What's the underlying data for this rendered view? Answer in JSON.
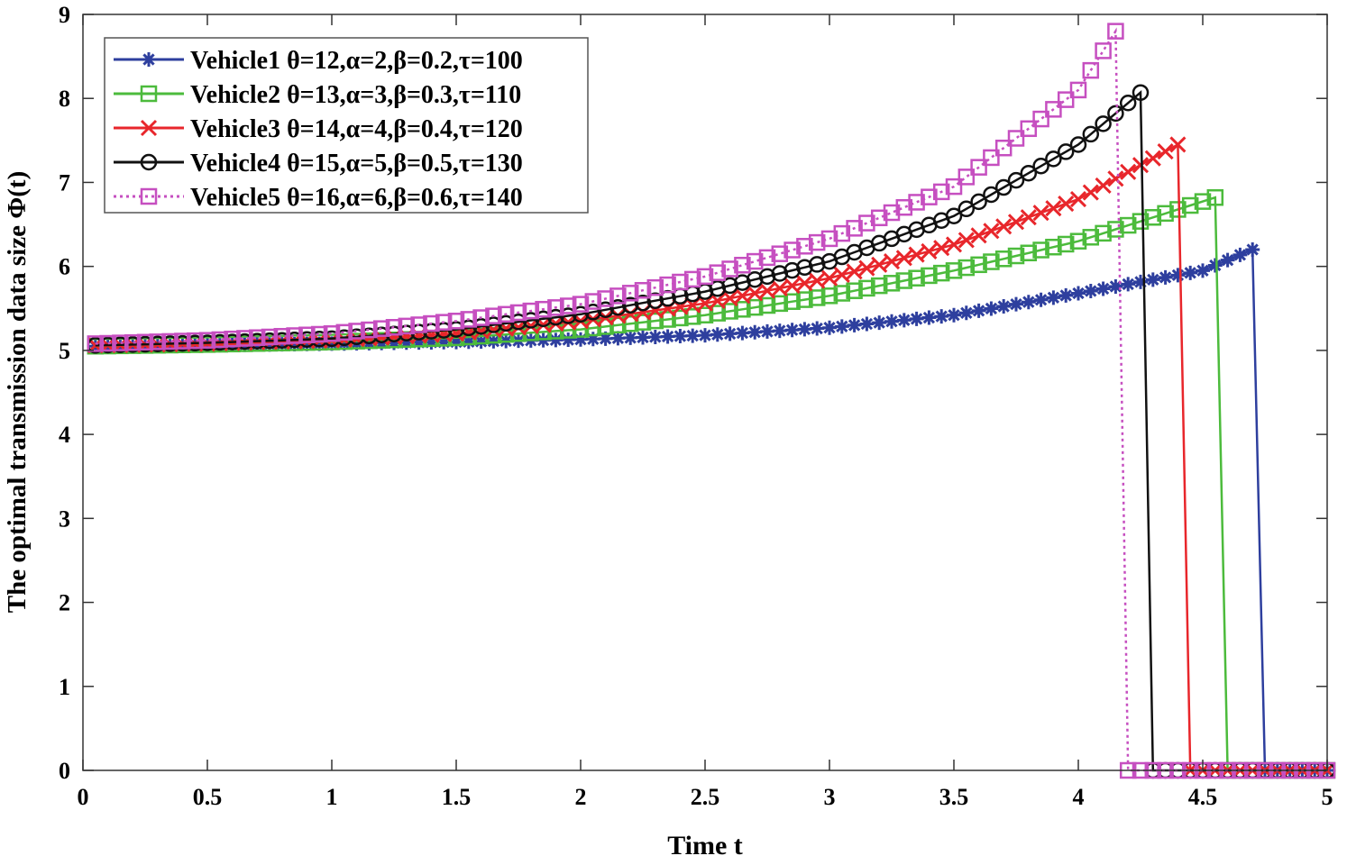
{
  "chart_data": {
    "type": "line",
    "title": "",
    "xlabel": "Time t",
    "ylabel": "The optimal transmission data size Φ(t)",
    "xlim": [
      0,
      5
    ],
    "ylim": [
      0,
      9
    ],
    "xticks": [
      "0",
      "0.5",
      "1",
      "1.5",
      "2",
      "2.5",
      "3",
      "3.5",
      "4",
      "4.5",
      "5"
    ],
    "yticks": [
      "0",
      "1",
      "2",
      "3",
      "4",
      "5",
      "6",
      "7",
      "8",
      "9"
    ],
    "grid": false,
    "legend_position": "top-left",
    "sample_step": 0.05,
    "series": [
      {
        "name": "Vehicle1 θ=12,α=2,β=0.2,τ=100",
        "color": "#2e3f9e",
        "marker": "asterisk",
        "dash": "solid",
        "points": [
          [
            0.05,
            5.05
          ],
          [
            0.5,
            5.06
          ],
          [
            1,
            5.08
          ],
          [
            1.5,
            5.1
          ],
          [
            2,
            5.13
          ],
          [
            2.5,
            5.18
          ],
          [
            3,
            5.27
          ],
          [
            3.5,
            5.42
          ],
          [
            4,
            5.68
          ],
          [
            4.5,
            5.95
          ],
          [
            4.7,
            6.2
          ],
          [
            4.75,
            0
          ],
          [
            5,
            0
          ]
        ]
      },
      {
        "name": "Vehicle2 θ=13,α=3,β=0.3,τ=110",
        "color": "#4cbb3c",
        "marker": "square",
        "dash": "solid",
        "points": [
          [
            0.05,
            5.05
          ],
          [
            0.5,
            5.07
          ],
          [
            1,
            5.1
          ],
          [
            1.5,
            5.15
          ],
          [
            2,
            5.25
          ],
          [
            2.5,
            5.42
          ],
          [
            3,
            5.65
          ],
          [
            3.5,
            5.95
          ],
          [
            4,
            6.3
          ],
          [
            4.55,
            6.82
          ],
          [
            4.6,
            0
          ],
          [
            5,
            0
          ]
        ]
      },
      {
        "name": "Vehicle3 θ=14,α=4,β=0.4,τ=120",
        "color": "#e8262b",
        "marker": "x",
        "dash": "solid",
        "points": [
          [
            0.05,
            5.06
          ],
          [
            0.5,
            5.08
          ],
          [
            1,
            5.12
          ],
          [
            1.5,
            5.2
          ],
          [
            2,
            5.35
          ],
          [
            2.5,
            5.56
          ],
          [
            3,
            5.86
          ],
          [
            3.5,
            6.26
          ],
          [
            4,
            6.8
          ],
          [
            4.4,
            7.45
          ],
          [
            4.45,
            0
          ],
          [
            5,
            0
          ]
        ]
      },
      {
        "name": "Vehicle4 θ=15,α=5,β=0.5,τ=130",
        "color": "#111111",
        "marker": "circle",
        "dash": "solid",
        "points": [
          [
            0.05,
            5.06
          ],
          [
            0.5,
            5.09
          ],
          [
            1,
            5.14
          ],
          [
            1.5,
            5.25
          ],
          [
            2,
            5.43
          ],
          [
            2.5,
            5.7
          ],
          [
            3,
            6.06
          ],
          [
            3.5,
            6.6
          ],
          [
            4,
            7.45
          ],
          [
            4.25,
            8.07
          ],
          [
            4.3,
            0
          ],
          [
            5,
            0
          ]
        ]
      },
      {
        "name": "Vehicle5 θ=16,α=6,β=0.6,τ=140",
        "color": "#c64fc0",
        "marker": "square",
        "dash": "dotted",
        "points": [
          [
            0.05,
            5.08
          ],
          [
            0.5,
            5.12
          ],
          [
            1,
            5.2
          ],
          [
            1.5,
            5.35
          ],
          [
            2,
            5.55
          ],
          [
            2.5,
            5.88
          ],
          [
            3,
            6.33
          ],
          [
            3.5,
            6.95
          ],
          [
            4,
            8.1
          ],
          [
            4.15,
            8.8
          ],
          [
            4.2,
            0
          ],
          [
            5,
            0
          ]
        ]
      }
    ]
  }
}
